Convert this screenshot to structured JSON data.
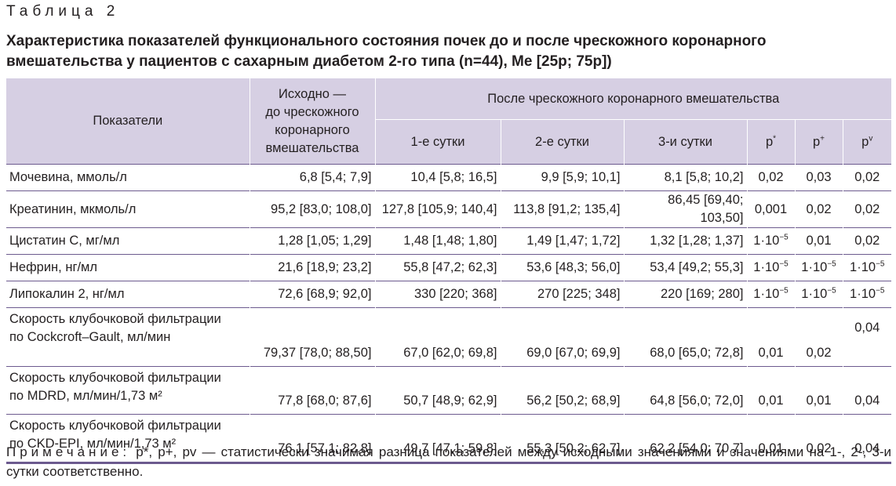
{
  "table_label": "Таблица 2",
  "caption": "Характеристика показателей функционального состояния почек до и после чрескожного коронарного вмешательства у пациентов с сахарным диабетом 2-го типа (n=44), Me [25p; 75p])",
  "header": {
    "indicators": "Показатели",
    "baseline_lines": [
      "Исходно —",
      "до чрескожного",
      "коронарного",
      "вмешательства"
    ],
    "after": "После чрескожного коронарного вмешательства",
    "day1": "1-е сутки",
    "day2": "2-е сутки",
    "day3": "3-и сутки",
    "p": "p",
    "p_marks": [
      "*",
      "+",
      "v"
    ]
  },
  "rows": [
    {
      "name": [
        "Мочевина, ммоль/л"
      ],
      "base": "6,8 [5,4; 7,9]",
      "d1": "10,4 [5,8; 16,5]",
      "d2": "9,9 [5,9; 10,1]",
      "d3": "8,1 [5,8; 10,2]",
      "p1": "0,02",
      "p2": "0,03",
      "p3": "0,02"
    },
    {
      "name": [
        "Креатинин, мкмоль/л"
      ],
      "base": "95,2 [83,0; 108,0]",
      "d1": "127,8 [105,9; 140,4]",
      "d2": "113,8 [91,2; 135,4]",
      "d3": "86,45 [69,40; 103,50]",
      "p1": "0,001",
      "p2": "0,02",
      "p3": "0,02"
    },
    {
      "name": [
        "Цистатин С, мг/мл"
      ],
      "base": "1,28 [1,05; 1,29]",
      "d1": "1,48 [1,48; 1,80]",
      "d2": "1,49 [1,47; 1,72]",
      "d3": "1,32 [1,28; 1,37]",
      "p1": "1·10−5",
      "p2": "0,01",
      "p3": "0,02"
    },
    {
      "name": [
        "Нефрин, нг/мл"
      ],
      "base": "21,6 [18,9; 23,2]",
      "d1": "55,8 [47,2; 62,3]",
      "d2": "53,6 [48,3; 56,0]",
      "d3": "53,4 [49,2; 55,3]",
      "p1": "1·10−5",
      "p2": "1·10−5",
      "p3": "1·10−5"
    },
    {
      "name": [
        "Липокалин 2, нг/мл"
      ],
      "base": "72,6 [68,9; 92,0]",
      "d1": "330 [220; 368]",
      "d2": "270 [225; 348]",
      "d3": "220 [169; 280]",
      "p1": "1·10−5",
      "p2": "1·10−5",
      "p3": "1·10−5"
    },
    {
      "name": [
        "Скорость клубочковой фильтрации",
        "по Cockcroft–Gault, мл/мин"
      ],
      "base": "79,37 [78,0; 88,50]",
      "d1": "67,0 [62,0; 69,8]",
      "d2": "69,0 [67,0; 69,9]",
      "d3": "68,0 [65,0; 72,8]",
      "p1": "0,01",
      "p2": "0,02",
      "p3": "0,04"
    },
    {
      "name": [
        "Скорость клубочковой фильтрации",
        "по MDRD, мл/мин/1,73 м²"
      ],
      "base": "77,8 [68,0; 87,6]",
      "d1": "50,7 [48,9; 62,9]",
      "d2": "56,2 [50,2; 68,9]",
      "d3": "64,8 [56,0; 72,0]",
      "p1": "0,01",
      "p2": "0,01",
      "p3": "0,04"
    },
    {
      "name": [
        "Скорость клубочковой фильтрации",
        "по CKD-EPI, мл/мин/1,73 м²"
      ],
      "base": "76,1 [57,1; 82,8]",
      "d1": "49,7 [47,1; 59,8]",
      "d2": "55,3 [50,2; 62,7]",
      "d3": "62,2 [54,0; 70,7]",
      "p1": "0,01",
      "p2": "0,02",
      "p3": "0,04"
    }
  ],
  "note": {
    "prefix": "Примечание:",
    "text": "p*, p+, pv — статистически значимая разница показателей между исходными значениями и значениями на 1-, 2-, 3-и сутки соответственно."
  }
}
